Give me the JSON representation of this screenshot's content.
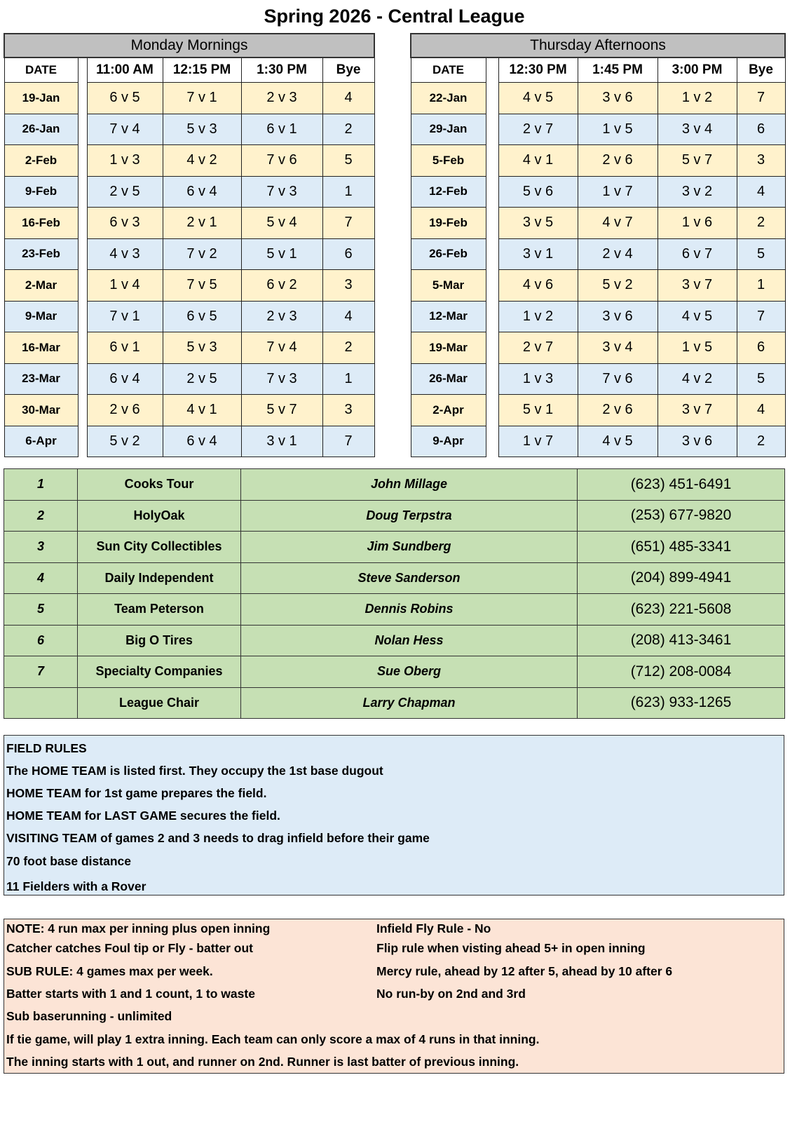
{
  "title": "Spring 2026 - Central League",
  "monday": {
    "heading": "Monday Mornings",
    "columns": [
      "DATE",
      "11:00 AM",
      "12:15 PM",
      "1:30 PM",
      "Bye"
    ],
    "rows": [
      [
        "19-Jan",
        "6 v 5",
        "7 v 1",
        "2 v 3",
        "4"
      ],
      [
        "26-Jan",
        "7 v 4",
        "5 v 3",
        "6 v 1",
        "2"
      ],
      [
        "2-Feb",
        "1 v 3",
        "4 v 2",
        "7 v 6",
        "5"
      ],
      [
        "9-Feb",
        "2 v 5",
        "6 v 4",
        "7 v 3",
        "1"
      ],
      [
        "16-Feb",
        "6 v 3",
        "2 v 1",
        "5 v 4",
        "7"
      ],
      [
        "23-Feb",
        "4 v 3",
        "7 v 2",
        "5 v 1",
        "6"
      ],
      [
        "2-Mar",
        "1 v 4",
        "7 v 5",
        "6 v 2",
        "3"
      ],
      [
        "9-Mar",
        "7 v 1",
        "6 v 5",
        "2 v 3",
        "4"
      ],
      [
        "16-Mar",
        "6 v 1",
        "5 v 3",
        "7 v 4",
        "2"
      ],
      [
        "23-Mar",
        "6 v 4",
        "2 v 5",
        "7 v 3",
        "1"
      ],
      [
        "30-Mar",
        "2 v 6",
        "4 v 1",
        "5 v 7",
        "3"
      ],
      [
        "6-Apr",
        "5 v 2",
        "6  v  4",
        "3 v 1",
        "7"
      ]
    ]
  },
  "thursday": {
    "heading": "Thursday Afternoons",
    "columns": [
      "DATE",
      "12:30 PM",
      "1:45 PM",
      "3:00 PM",
      "Bye"
    ],
    "rows": [
      [
        "22-Jan",
        "4 v 5",
        "3 v 6",
        "1 v 2",
        "7"
      ],
      [
        "29-Jan",
        "2 v 7",
        "1 v 5",
        "3 v 4",
        "6"
      ],
      [
        "5-Feb",
        "4 v 1",
        "2 v 6",
        "5 v 7",
        "3"
      ],
      [
        "12-Feb",
        "5 v 6",
        "1 v 7",
        "3 v 2",
        "4"
      ],
      [
        "19-Feb",
        "3 v 5",
        "4 v 7",
        "1 v 6",
        "2"
      ],
      [
        "26-Feb",
        "3 v 1",
        "2 v 4",
        "6 v 7",
        "5"
      ],
      [
        "5-Mar",
        "4 v 6",
        "5 v 2",
        "3 v 7",
        "1"
      ],
      [
        "12-Mar",
        "1 v 2",
        "3 v 6",
        "4 v 5",
        "7"
      ],
      [
        "19-Mar",
        "2 v 7",
        "3 v 4",
        "1 v 5",
        "6"
      ],
      [
        "26-Mar",
        "1 v 3",
        "7 v 6",
        "4 v 2",
        "5"
      ],
      [
        "2-Apr",
        "5  v 1",
        "2 v 6",
        "3 v 7",
        "4"
      ],
      [
        "9-Apr",
        "1 v 7",
        "4 v 5",
        "3 v 6",
        "2"
      ]
    ]
  },
  "row_colors": {
    "odd": "#fff2cc",
    "even": "#ddebf7"
  },
  "contacts": [
    [
      "1",
      "Cooks Tour",
      "John Millage",
      "(623) 451-6491"
    ],
    [
      "2",
      "HolyOak",
      "Doug Terpstra",
      "(253) 677-9820"
    ],
    [
      "3",
      "Sun City Collectibles",
      "Jim Sundberg",
      "(651) 485-3341"
    ],
    [
      "4",
      "Daily Independent",
      "Steve Sanderson",
      "(204) 899-4941"
    ],
    [
      "5",
      "Team Peterson",
      "Dennis Robins",
      "(623) 221-5608"
    ],
    [
      "6",
      "Big O Tires",
      "Nolan Hess",
      "(208) 413-3461"
    ],
    [
      "7",
      "Specialty Companies",
      "Sue Oberg",
      "(712) 208-0084"
    ],
    [
      "",
      "League Chair",
      "Larry Chapman",
      "(623) 933-1265"
    ]
  ],
  "field_rules": [
    "FIELD RULES",
    "The HOME TEAM is listed first. They occupy the 1st base dugout",
    "HOME TEAM for 1st game prepares the field.",
    "HOME TEAM for LAST GAME secures the field.",
    "VISITING TEAM of games 2 and 3 needs to drag infield before their game",
    "70 foot base distance",
    "11 Fielders with a Rover"
  ],
  "notes_left": [
    "NOTE: 4 run max per inning plus open inning",
    "Catcher catches Foul tip or Fly - batter out",
    "SUB RULE: 4 games max per week.",
    "Batter starts with 1 and 1 count, 1 to waste",
    "Sub baserunning - unlimited",
    "If tie game, will play 1 extra inning.  Each team can only score a max of 4 runs in that inning.",
    "The inning starts with 1 out, and runner on 2nd.  Runner is last batter of previous inning."
  ],
  "notes_right": [
    "Infield Fly Rule - No",
    "Flip rule when visting ahead 5+ in open inning",
    "Mercy rule,  ahead by 12 after 5,  ahead by 10 after 6",
    "No run-by on 2nd and 3rd"
  ]
}
